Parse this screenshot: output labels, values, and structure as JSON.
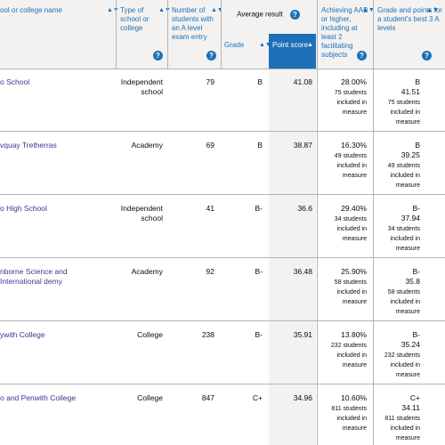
{
  "header": {
    "school_col": "ool or college name",
    "type_col": "Type of school or college",
    "students_col": "Number of students with an A level exam entry",
    "avg_result": "Average result",
    "grade_sub": "Grade",
    "point_sub": "Point score",
    "aab_col": "Achieving AAB or higher, including at least 2 facilitating subjects",
    "best3_col": "Grade and points for a student's best 3 A levels",
    "help_glyph": "?",
    "sort_glyph": "▲▼",
    "sort_active_glyph": "▲"
  },
  "rows": [
    {
      "name": "o School",
      "type": "Independent school",
      "students": "79",
      "grade": "B",
      "points": "41.08",
      "aab": "28.00%",
      "aab_note": "75 students included in measure",
      "best_grade": "B",
      "best_points": "41.51",
      "best_note": "75 students included in measure"
    },
    {
      "name": "vquay Tretherras",
      "type": "Academy",
      "students": "69",
      "grade": "B",
      "points": "38.87",
      "aab": "16.30%",
      "aab_note": "49 students included in measure",
      "best_grade": "B",
      "best_points": "39.25",
      "best_note": "49 students included in measure"
    },
    {
      "name": "o High School",
      "type": "Independent school",
      "students": "41",
      "grade": "B-",
      "points": "36.6",
      "aab": "29.40%",
      "aab_note": "34 students included in measure",
      "best_grade": "B-",
      "best_points": "37.94",
      "best_note": "34 students included in measure"
    },
    {
      "name": "nborne Science and International demy",
      "type": "Academy",
      "students": "92",
      "grade": "B-",
      "points": "36.48",
      "aab": "25.90%",
      "aab_note": "58 students included in measure",
      "best_grade": "B-",
      "best_points": "35.8",
      "best_note": "58 students included in measure"
    },
    {
      "name": "ywith College",
      "type": "College",
      "students": "238",
      "grade": "B-",
      "points": "35.91",
      "aab": "13.80%",
      "aab_note": "232 students included in measure",
      "best_grade": "B-",
      "best_points": "35.24",
      "best_note": "232 students included in measure"
    },
    {
      "name": "o and Penwith College",
      "type": "College",
      "students": "847",
      "grade": "C+",
      "points": "34.96",
      "aab": "10.60%",
      "aab_note": "811 students included in measure",
      "best_grade": "C+",
      "best_points": "34.11",
      "best_note": "811 students included in measure"
    }
  ]
}
